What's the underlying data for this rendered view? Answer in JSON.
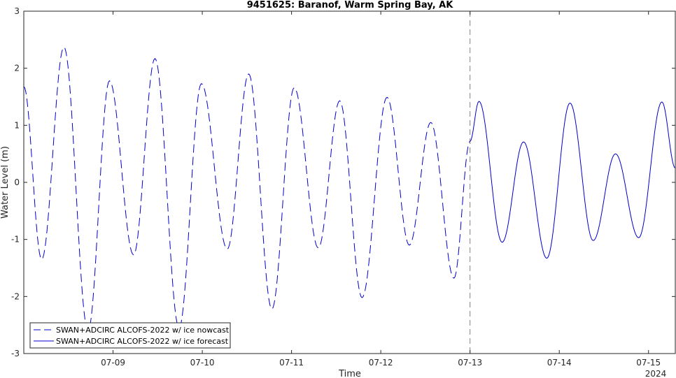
{
  "chart_data": {
    "type": "line",
    "title": "9451625: Baranof, Warm Spring Bay, AK",
    "xlabel": "Time",
    "ylabel": "Water Level (m)",
    "year_label": "2024",
    "x_unit": "days (July 2024, day-of-month)",
    "xlim": [
      8.0,
      15.3
    ],
    "ylim": [
      -3,
      3
    ],
    "yticks": [
      -3,
      -2,
      -1,
      0,
      1,
      2,
      3
    ],
    "xticks": [
      {
        "value": 9,
        "label": "07-09"
      },
      {
        "value": 10,
        "label": "07-10"
      },
      {
        "value": 11,
        "label": "07-11"
      },
      {
        "value": 12,
        "label": "07-12"
      },
      {
        "value": 13,
        "label": "07-13"
      },
      {
        "value": 14,
        "label": "07-14"
      },
      {
        "value": 15,
        "label": "07-15"
      }
    ],
    "grid": false,
    "legend_position": "bottom-left",
    "divider_x": 13,
    "series": [
      {
        "name": "SWAN+ADCIRC ALCOFS-2022 w/ ice nowcast",
        "style": "dashed",
        "color": "#0000cd",
        "extrema": [
          [
            8.0,
            1.68
          ],
          [
            8.2,
            -1.35
          ],
          [
            8.45,
            2.37
          ],
          [
            8.72,
            -2.6
          ],
          [
            8.96,
            1.78
          ],
          [
            9.23,
            -1.27
          ],
          [
            9.47,
            2.17
          ],
          [
            9.74,
            -2.55
          ],
          [
            9.99,
            1.73
          ],
          [
            10.28,
            -1.17
          ],
          [
            10.52,
            1.9
          ],
          [
            10.78,
            -2.22
          ],
          [
            11.03,
            1.66
          ],
          [
            11.3,
            -1.15
          ],
          [
            11.54,
            1.43
          ],
          [
            11.79,
            -2.02
          ],
          [
            12.07,
            1.49
          ],
          [
            12.32,
            -1.1
          ],
          [
            12.56,
            1.05
          ],
          [
            12.82,
            -1.68
          ],
          [
            13.0,
            0.72
          ]
        ]
      },
      {
        "name": "SWAN+ADCIRC ALCOFS-2022 w/ ice forecast",
        "style": "solid",
        "color": "#0000cd",
        "extrema": [
          [
            13.0,
            0.72
          ],
          [
            13.1,
            1.42
          ],
          [
            13.36,
            -1.05
          ],
          [
            13.6,
            0.71
          ],
          [
            13.86,
            -1.33
          ],
          [
            14.12,
            1.39
          ],
          [
            14.38,
            -1.02
          ],
          [
            14.63,
            0.5
          ],
          [
            14.89,
            -0.97
          ],
          [
            15.15,
            1.41
          ],
          [
            15.3,
            0.25
          ]
        ]
      }
    ]
  }
}
